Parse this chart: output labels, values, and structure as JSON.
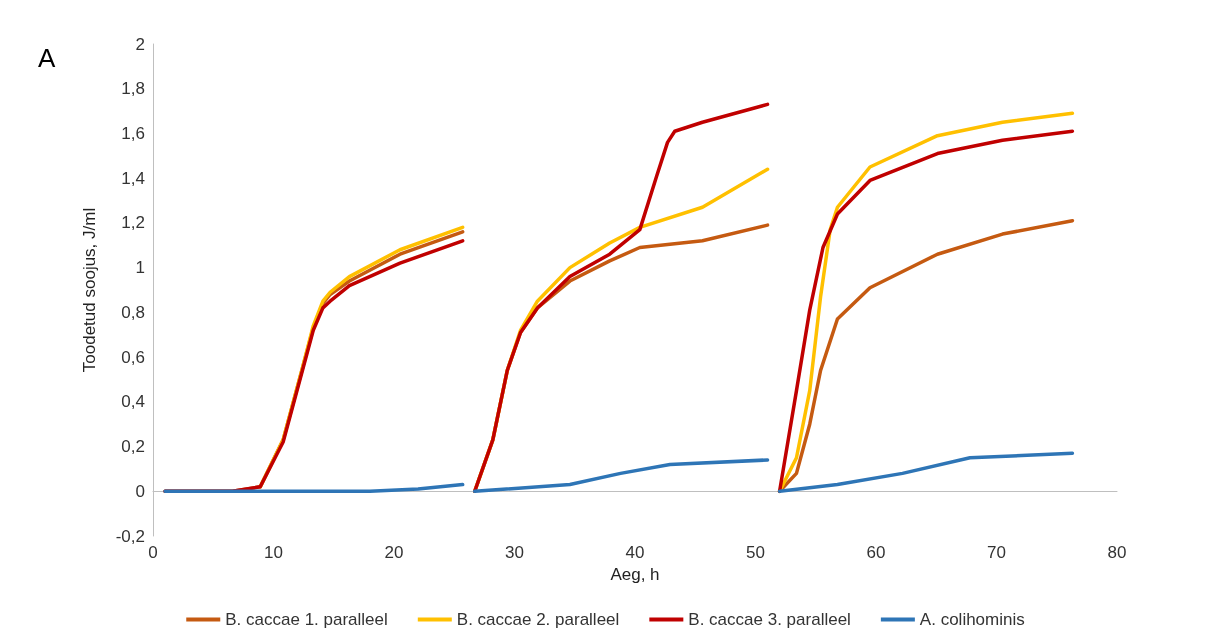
{
  "chart_data": {
    "type": "line",
    "xlabel": "Aeg, h",
    "ylabel": "Toodetud soojus, J/ml",
    "annotations": [
      "A"
    ],
    "xlim": [
      0,
      80
    ],
    "xticks": [
      0,
      10,
      20,
      30,
      40,
      50,
      60,
      70,
      80
    ],
    "ylim": [
      -0.2,
      2
    ],
    "yticks": [
      {
        "value": -0.2,
        "label": "-0,2"
      },
      0,
      {
        "value": 0.2,
        "label": "0,2"
      },
      {
        "value": 0.4,
        "label": "0,4"
      },
      {
        "value": 0.6,
        "label": "0,6"
      },
      {
        "value": 0.8,
        "label": "0,8"
      },
      1,
      {
        "value": 1.2,
        "label": "1,2"
      },
      {
        "value": 1.4,
        "label": "1,4"
      },
      {
        "value": 1.6,
        "label": "1,6"
      },
      {
        "value": 1.8,
        "label": "1,8"
      },
      2
    ],
    "legend": "bottom",
    "marker": "none",
    "line_style": "solid",
    "series": [
      {
        "name": "B. caccae 1. paralleel",
        "color": "#c55a11",
        "x": [
          1,
          6.6,
          8.9,
          10.8,
          12.4,
          13.3,
          14.1,
          14.7,
          16.3,
          20.5,
          25.7,
          26.2,
          26.7,
          28.2,
          29.4,
          30.5,
          31.9,
          34.6,
          37.9,
          40.4,
          45.6,
          51.0,
          51.5,
          52.0,
          53.4,
          54.5,
          55.4,
          56.8,
          59.5,
          65.1,
          70.5,
          76.3
        ],
        "values": [
          0,
          0,
          0.02,
          0.23,
          0.55,
          0.73,
          0.84,
          0.88,
          0.94,
          1.06,
          1.16,
          null,
          0,
          0.23,
          0.54,
          0.71,
          0.82,
          0.94,
          1.03,
          1.09,
          1.12,
          1.19,
          null,
          0,
          0.08,
          0.3,
          0.54,
          0.77,
          0.91,
          1.06,
          1.15,
          1.21
        ]
      },
      {
        "name": "B. caccae 2. paralleel",
        "color": "#ffc000",
        "x": [
          8.9,
          10.8,
          12.4,
          13.3,
          14.1,
          14.7,
          16.3,
          20.5,
          25.7,
          26.2,
          26.7,
          28.2,
          29.4,
          30.5,
          31.9,
          34.6,
          37.9,
          40.4,
          45.6,
          51.0,
          51.5,
          52.0,
          53.4,
          54.5,
          55.4,
          56.2,
          56.8,
          59.5,
          65.1,
          70.5,
          76.3
        ],
        "values": [
          0.02,
          0.23,
          0.55,
          0.74,
          0.85,
          0.89,
          0.96,
          1.08,
          1.18,
          null,
          0,
          0.23,
          0.54,
          0.72,
          0.85,
          1.0,
          1.11,
          1.18,
          1.27,
          1.44,
          null,
          0,
          0.15,
          0.45,
          0.87,
          1.17,
          1.27,
          1.45,
          1.59,
          1.65,
          1.69
        ]
      },
      {
        "name": "B. caccae 3. paralleel",
        "color": "#c00000",
        "x": [
          1,
          6.6,
          8.9,
          10.8,
          12.4,
          13.3,
          14.1,
          14.7,
          16.3,
          20.5,
          25.7,
          26.2,
          26.7,
          28.2,
          29.4,
          30.5,
          31.9,
          34.6,
          37.9,
          40.4,
          41.8,
          42.7,
          43.3,
          45.6,
          51.0,
          51.5,
          52.0,
          53.4,
          54.5,
          55.6,
          56.8,
          59.5,
          65.1,
          70.5,
          76.3
        ],
        "values": [
          0,
          0,
          0.02,
          0.22,
          0.54,
          0.72,
          0.82,
          0.85,
          0.92,
          1.02,
          1.12,
          null,
          0,
          0.23,
          0.54,
          0.71,
          0.82,
          0.96,
          1.06,
          1.17,
          1.41,
          1.56,
          1.61,
          1.65,
          1.73,
          null,
          0,
          0.45,
          0.81,
          1.09,
          1.24,
          1.39,
          1.51,
          1.57,
          1.61
        ]
      },
      {
        "name": "A. colihominis",
        "color": "#2e75b6",
        "x": [
          1,
          18,
          22,
          25.7,
          26.2,
          26.7,
          34.6,
          38.8,
          42.9,
          51.0,
          51.5,
          52.0,
          56.8,
          62.2,
          67.8,
          76.3
        ],
        "values": [
          0,
          0,
          0.01,
          0.03,
          null,
          0,
          0.03,
          0.08,
          0.12,
          0.14,
          null,
          0,
          0.03,
          0.08,
          0.15,
          0.17
        ]
      }
    ]
  }
}
